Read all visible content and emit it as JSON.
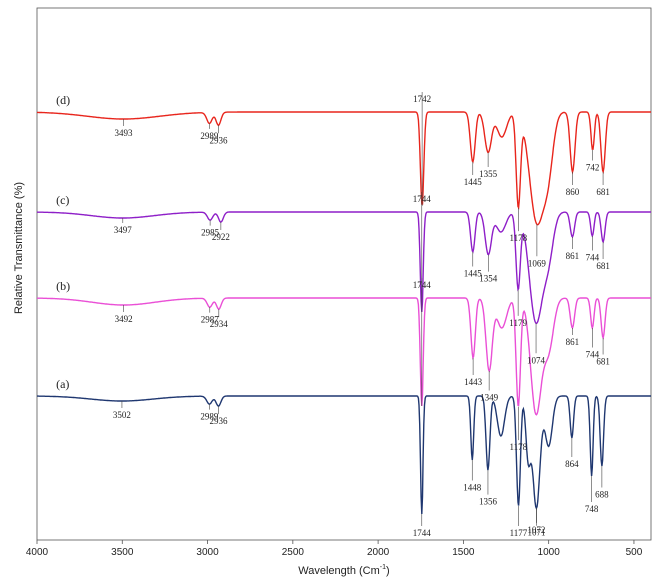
{
  "chart_data": {
    "type": "line",
    "title": "",
    "xlabel": "Wavelength (Cm",
    "xlabel_sup": "-1",
    "xlabel_close": ")",
    "ylabel": "Relative Transmittance (%)",
    "xlim": [
      4000,
      400
    ],
    "x_reversed": true,
    "x_ticks": [
      "4000",
      "3500",
      "3000",
      "2500",
      "2000",
      "1500",
      "1000",
      "500"
    ],
    "grid": false,
    "legend": "none (series labelled at left)",
    "series": [
      {
        "name": "(d)",
        "color": "#e8251c",
        "offset": 112,
        "label_wn": 3888,
        "peaks": [
          {
            "wn": 3493,
            "label": "3493"
          },
          {
            "wn": 2989,
            "label": "2989"
          },
          {
            "wn": 2936,
            "label": "2936"
          },
          {
            "wn": 1742,
            "label": "1742"
          },
          {
            "wn": 1445,
            "label": "1445"
          },
          {
            "wn": 1355,
            "label": "1355"
          },
          {
            "wn": 1178,
            "label": "1178"
          },
          {
            "wn": 1069,
            "label": "1069"
          },
          {
            "wn": 860,
            "label": "860"
          },
          {
            "wn": 742,
            "label": "742"
          },
          {
            "wn": 681,
            "label": "681"
          }
        ]
      },
      {
        "name": "(c)",
        "color": "#8e1fc8",
        "offset": 212,
        "label_wn": 3888,
        "peaks": [
          {
            "wn": 3497,
            "label": "3497"
          },
          {
            "wn": 2985,
            "label": "2985"
          },
          {
            "wn": 2922,
            "label": "2922"
          },
          {
            "wn": 1744,
            "label": "1744"
          },
          {
            "wn": 1445,
            "label": "1445"
          },
          {
            "wn": 1354,
            "label": "1354"
          },
          {
            "wn": 1179,
            "label": "1179"
          },
          {
            "wn": 1074,
            "label": "1074"
          },
          {
            "wn": 861,
            "label": "861"
          },
          {
            "wn": 744,
            "label": "744"
          },
          {
            "wn": 681,
            "label": "681"
          }
        ]
      },
      {
        "name": "(b)",
        "color": "#ea4fd6",
        "offset": 298,
        "label_wn": 3888,
        "peaks": [
          {
            "wn": 3492,
            "label": "3492"
          },
          {
            "wn": 2987,
            "label": "2987"
          },
          {
            "wn": 2934,
            "label": "2934"
          },
          {
            "wn": 1744,
            "label": "1744"
          },
          {
            "wn": 1443,
            "label": "1443"
          },
          {
            "wn": 1349,
            "label": "1349"
          },
          {
            "wn": 1178,
            "label": "1178"
          },
          {
            "wn": 861,
            "label": "861"
          },
          {
            "wn": 744,
            "label": "744"
          },
          {
            "wn": 681,
            "label": "681"
          }
        ]
      },
      {
        "name": "(a)",
        "color": "#1f3770",
        "offset": 396,
        "label_wn": 3888,
        "peaks": [
          {
            "wn": 3502,
            "label": "3502"
          },
          {
            "wn": 2989,
            "label": "2989"
          },
          {
            "wn": 2936,
            "label": "2936"
          },
          {
            "wn": 1744,
            "label": "1744"
          },
          {
            "wn": 1448,
            "label": "1448"
          },
          {
            "wn": 1356,
            "label": "1356"
          },
          {
            "wn": 1177,
            "label": "1177"
          },
          {
            "wn": 1072,
            "label": "1072"
          },
          {
            "wn": 1071,
            "label": "1071"
          },
          {
            "wn": 864,
            "label": "864"
          },
          {
            "wn": 748,
            "label": "748"
          },
          {
            "wn": 688,
            "label": "688"
          }
        ]
      }
    ]
  }
}
